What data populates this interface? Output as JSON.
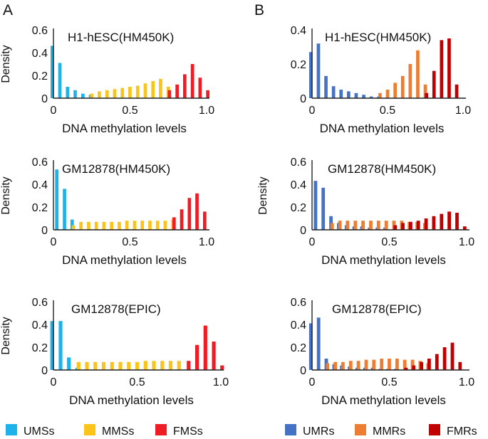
{
  "panel_labels": [
    "A",
    "B"
  ],
  "legend_A": [
    {
      "label": "UMSs",
      "color": "#1DB2E9"
    },
    {
      "label": "MMSs",
      "color": "#FBC41B"
    },
    {
      "label": "FMSs",
      "color": "#EE1C24"
    }
  ],
  "legend_B": [
    {
      "label": "UMRs",
      "color": "#4472C4"
    },
    {
      "label": "MMRs",
      "color": "#ED7D31"
    },
    {
      "label": "FMRs",
      "color": "#C00000"
    }
  ],
  "chart_data": [
    {
      "type": "bar",
      "panel": "A",
      "title": "H1-hESC(HM450K)",
      "xlabel": "DNA methylation levels",
      "ylabel": "Density",
      "xlim": [
        0,
        1
      ],
      "ylim": [
        0,
        0.6
      ],
      "x_ticks": [
        "0",
        "0.5",
        "1.0"
      ],
      "y_ticks": [
        "0",
        "0.2",
        "0.4",
        "0.6"
      ],
      "bin_width": 0.05,
      "series": [
        {
          "name": "UMSs",
          "color": "#1DB2E9",
          "x": [
            0,
            0.05,
            0.1,
            0.15,
            0.2,
            0.25
          ],
          "values": [
            0.46,
            0.31,
            0.1,
            0.07,
            0.04,
            0.03
          ]
        },
        {
          "name": "MMSs",
          "color": "#FBC41B",
          "x": [
            0.25,
            0.3,
            0.35,
            0.4,
            0.45,
            0.5,
            0.55,
            0.6,
            0.65,
            0.7,
            0.75
          ],
          "values": [
            0.04,
            0.06,
            0.07,
            0.08,
            0.09,
            0.1,
            0.11,
            0.13,
            0.15,
            0.17,
            0.1
          ]
        },
        {
          "name": "FMSs",
          "color": "#EE1C24",
          "x": [
            0.75,
            0.8,
            0.85,
            0.9,
            0.95,
            1.0
          ],
          "values": [
            0.07,
            0.12,
            0.21,
            0.3,
            0.18,
            0.07
          ]
        }
      ]
    },
    {
      "type": "bar",
      "panel": "A",
      "title": "GM12878(HM450K)",
      "xlabel": "DNA methylation levels",
      "ylabel": "Density",
      "xlim": [
        0,
        1
      ],
      "ylim": [
        0,
        0.6
      ],
      "x_ticks": [
        "0",
        "0.5",
        "1.0"
      ],
      "y_ticks": [
        "0",
        "0.2",
        "0.4",
        "0.6"
      ],
      "bin_width": 0.05,
      "series": [
        {
          "name": "UMSs",
          "color": "#1DB2E9",
          "x": [
            0.03,
            0.08,
            0.13
          ],
          "values": [
            0.53,
            0.36,
            0.09
          ]
        },
        {
          "name": "MMSs",
          "color": "#FBC41B",
          "x": [
            0.13,
            0.18,
            0.23,
            0.28,
            0.33,
            0.38,
            0.43,
            0.48,
            0.53,
            0.58,
            0.63,
            0.68,
            0.73,
            0.78
          ],
          "values": [
            0.04,
            0.07,
            0.07,
            0.07,
            0.07,
            0.07,
            0.07,
            0.08,
            0.08,
            0.08,
            0.08,
            0.08,
            0.08,
            0.09
          ]
        },
        {
          "name": "FMSs",
          "color": "#EE1C24",
          "x": [
            0.78,
            0.83,
            0.88,
            0.93,
            0.98
          ],
          "values": [
            0.11,
            0.18,
            0.28,
            0.32,
            0.16
          ]
        }
      ]
    },
    {
      "type": "bar",
      "panel": "A",
      "title": "GM12878(EPIC)",
      "xlabel": "DNA methylation levels",
      "ylabel": "Density",
      "xlim": [
        0,
        1
      ],
      "ylim": [
        0,
        0.6
      ],
      "x_ticks": [
        "0",
        "0.5",
        "1.0"
      ],
      "y_ticks": [
        "0",
        "0.2",
        "0.4",
        "0.6"
      ],
      "bin_width": 0.05,
      "series": [
        {
          "name": "UMSs",
          "color": "#1DB2E9",
          "x": [
            0,
            0.05,
            0.1,
            0.15
          ],
          "values": [
            0.43,
            0.43,
            0.11,
            0.02
          ]
        },
        {
          "name": "MMSs",
          "color": "#FBC41B",
          "x": [
            0.15,
            0.2,
            0.25,
            0.3,
            0.35,
            0.4,
            0.45,
            0.5,
            0.55,
            0.6,
            0.65,
            0.7,
            0.75
          ],
          "values": [
            0.07,
            0.07,
            0.07,
            0.07,
            0.07,
            0.07,
            0.07,
            0.07,
            0.08,
            0.08,
            0.08,
            0.08,
            0.08
          ]
        },
        {
          "name": "FMSs",
          "color": "#EE1C24",
          "x": [
            0.8,
            0.85,
            0.9,
            0.95,
            1.0
          ],
          "values": [
            0.08,
            0.22,
            0.39,
            0.25,
            0.04
          ]
        }
      ]
    },
    {
      "type": "bar",
      "panel": "B",
      "title": "H1-hESC(HM450K)",
      "xlabel": "DNA methylation levels",
      "ylabel": "",
      "xlim": [
        0,
        1
      ],
      "ylim": [
        0,
        0.4
      ],
      "x_ticks": [
        "0",
        "0.5",
        "1.0"
      ],
      "y_ticks": [
        "0",
        "0.2",
        "0.4"
      ],
      "bin_width": 0.05,
      "series": [
        {
          "name": "UMRs",
          "color": "#4472C4",
          "x": [
            0,
            0.05,
            0.1,
            0.15,
            0.2,
            0.25,
            0.3,
            0.35,
            0.4,
            0.45
          ],
          "values": [
            0.27,
            0.32,
            0.13,
            0.07,
            0.05,
            0.04,
            0.03,
            0.02,
            0.01,
            0.01
          ]
        },
        {
          "name": "MMRs",
          "color": "#ED7D31",
          "x": [
            0.45,
            0.5,
            0.55,
            0.6,
            0.65,
            0.7,
            0.75
          ],
          "values": [
            0.03,
            0.05,
            0.09,
            0.13,
            0.2,
            0.28,
            0.08
          ]
        },
        {
          "name": "FMRs",
          "color": "#C00000",
          "x": [
            0.75,
            0.8,
            0.85,
            0.9,
            0.95
          ],
          "values": [
            0.03,
            0.16,
            0.34,
            0.35,
            0.08
          ]
        }
      ]
    },
    {
      "type": "bar",
      "panel": "B",
      "title": "GM12878(HM450K)",
      "xlabel": "DNA methylation levels",
      "ylabel": "Density",
      "xlim": [
        0,
        1
      ],
      "ylim": [
        0,
        0.6
      ],
      "x_ticks": [
        "0",
        "0.5",
        "1.0"
      ],
      "y_ticks": [
        "0",
        "0.2",
        "0.4",
        "0.6"
      ],
      "bin_width": 0.05,
      "series": [
        {
          "name": "UMRs",
          "color": "#4472C4",
          "x": [
            0.03,
            0.08,
            0.13,
            0.18,
            0.23,
            0.28,
            0.33,
            0.38,
            0.43,
            0.48
          ],
          "values": [
            0.43,
            0.37,
            0.12,
            0.06,
            0.04,
            0.03,
            0.03,
            0.02,
            0.02,
            0.02
          ]
        },
        {
          "name": "MMRs",
          "color": "#ED7D31",
          "x": [
            0.13,
            0.18,
            0.23,
            0.28,
            0.33,
            0.38,
            0.43,
            0.48,
            0.53,
            0.58,
            0.63,
            0.68,
            0.73
          ],
          "values": [
            0.06,
            0.08,
            0.08,
            0.08,
            0.08,
            0.08,
            0.08,
            0.08,
            0.08,
            0.08,
            0.07,
            0.07,
            0.06
          ]
        },
        {
          "name": "FMRs",
          "color": "#C00000",
          "x": [
            0.53,
            0.58,
            0.63,
            0.68,
            0.73,
            0.78,
            0.83,
            0.88,
            0.93,
            0.98
          ],
          "values": [
            0.04,
            0.06,
            0.07,
            0.08,
            0.1,
            0.12,
            0.14,
            0.16,
            0.15,
            0.03
          ]
        }
      ]
    },
    {
      "type": "bar",
      "panel": "B",
      "title": "GM12878(EPIC)",
      "xlabel": "DNA methylation levels",
      "ylabel": "",
      "xlim": [
        0,
        1
      ],
      "ylim": [
        0,
        0.6
      ],
      "x_ticks": [
        "0",
        "0.5",
        "1.0"
      ],
      "y_ticks": [
        "0",
        "0.2",
        "0.4",
        "0.6"
      ],
      "bin_width": 0.05,
      "series": [
        {
          "name": "UMRs",
          "color": "#4472C4",
          "x": [
            0,
            0.05,
            0.1,
            0.15,
            0.2,
            0.25,
            0.3,
            0.35,
            0.4,
            0.45,
            0.5,
            0.55
          ],
          "values": [
            0.41,
            0.46,
            0.1,
            0.05,
            0.04,
            0.03,
            0.02,
            0.02,
            0.02,
            0.01,
            0.01,
            0.01
          ]
        },
        {
          "name": "MMRs",
          "color": "#ED7D31",
          "x": [
            0.1,
            0.15,
            0.2,
            0.25,
            0.3,
            0.35,
            0.4,
            0.45,
            0.5,
            0.55,
            0.6,
            0.65,
            0.7,
            0.75
          ],
          "values": [
            0.06,
            0.07,
            0.07,
            0.08,
            0.08,
            0.09,
            0.09,
            0.1,
            0.1,
            0.1,
            0.09,
            0.09,
            0.08,
            0.06
          ]
        },
        {
          "name": "FMRs",
          "color": "#C00000",
          "x": [
            0.6,
            0.65,
            0.7,
            0.75,
            0.8,
            0.85,
            0.9,
            0.95
          ],
          "values": [
            0.02,
            0.04,
            0.07,
            0.1,
            0.14,
            0.2,
            0.24,
            0.07
          ]
        }
      ]
    }
  ]
}
